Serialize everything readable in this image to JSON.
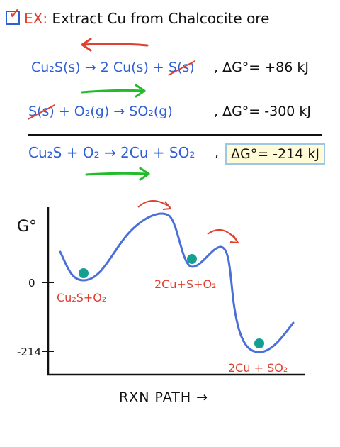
{
  "header": {
    "ex_label": "EX:",
    "title": "Extract Cu from Chalcocite ore"
  },
  "reactions": {
    "r1": {
      "lhs": "Cu₂S(s) → 2 Cu(s) + ",
      "crossed": "S(s)",
      "dg": ", ΔG°= +86 kJ"
    },
    "r2": {
      "crossed": "S(s)",
      "rhs": " + O₂(g) → SO₂(g)",
      "dg": ", ΔG°= -300 kJ"
    },
    "r3": {
      "eq": "Cu₂S + O₂ → 2Cu + SO₂",
      "comma": ",",
      "dg": "ΔG°= -214 kJ"
    }
  },
  "diagram": {
    "ylabel": "G°",
    "tick_0": "0",
    "tick_214": "-214",
    "xlabel": "RXN PATH →",
    "state1": "Cu₂S+O₂",
    "state2": "2Cu+S+O₂",
    "state3": "2Cu + SO₂"
  },
  "colors": {
    "blue": "#2f5fd6",
    "red": "#e0402f",
    "green": "#22bb2a",
    "teal": "#159f91",
    "highlight": "#fffbd6"
  }
}
